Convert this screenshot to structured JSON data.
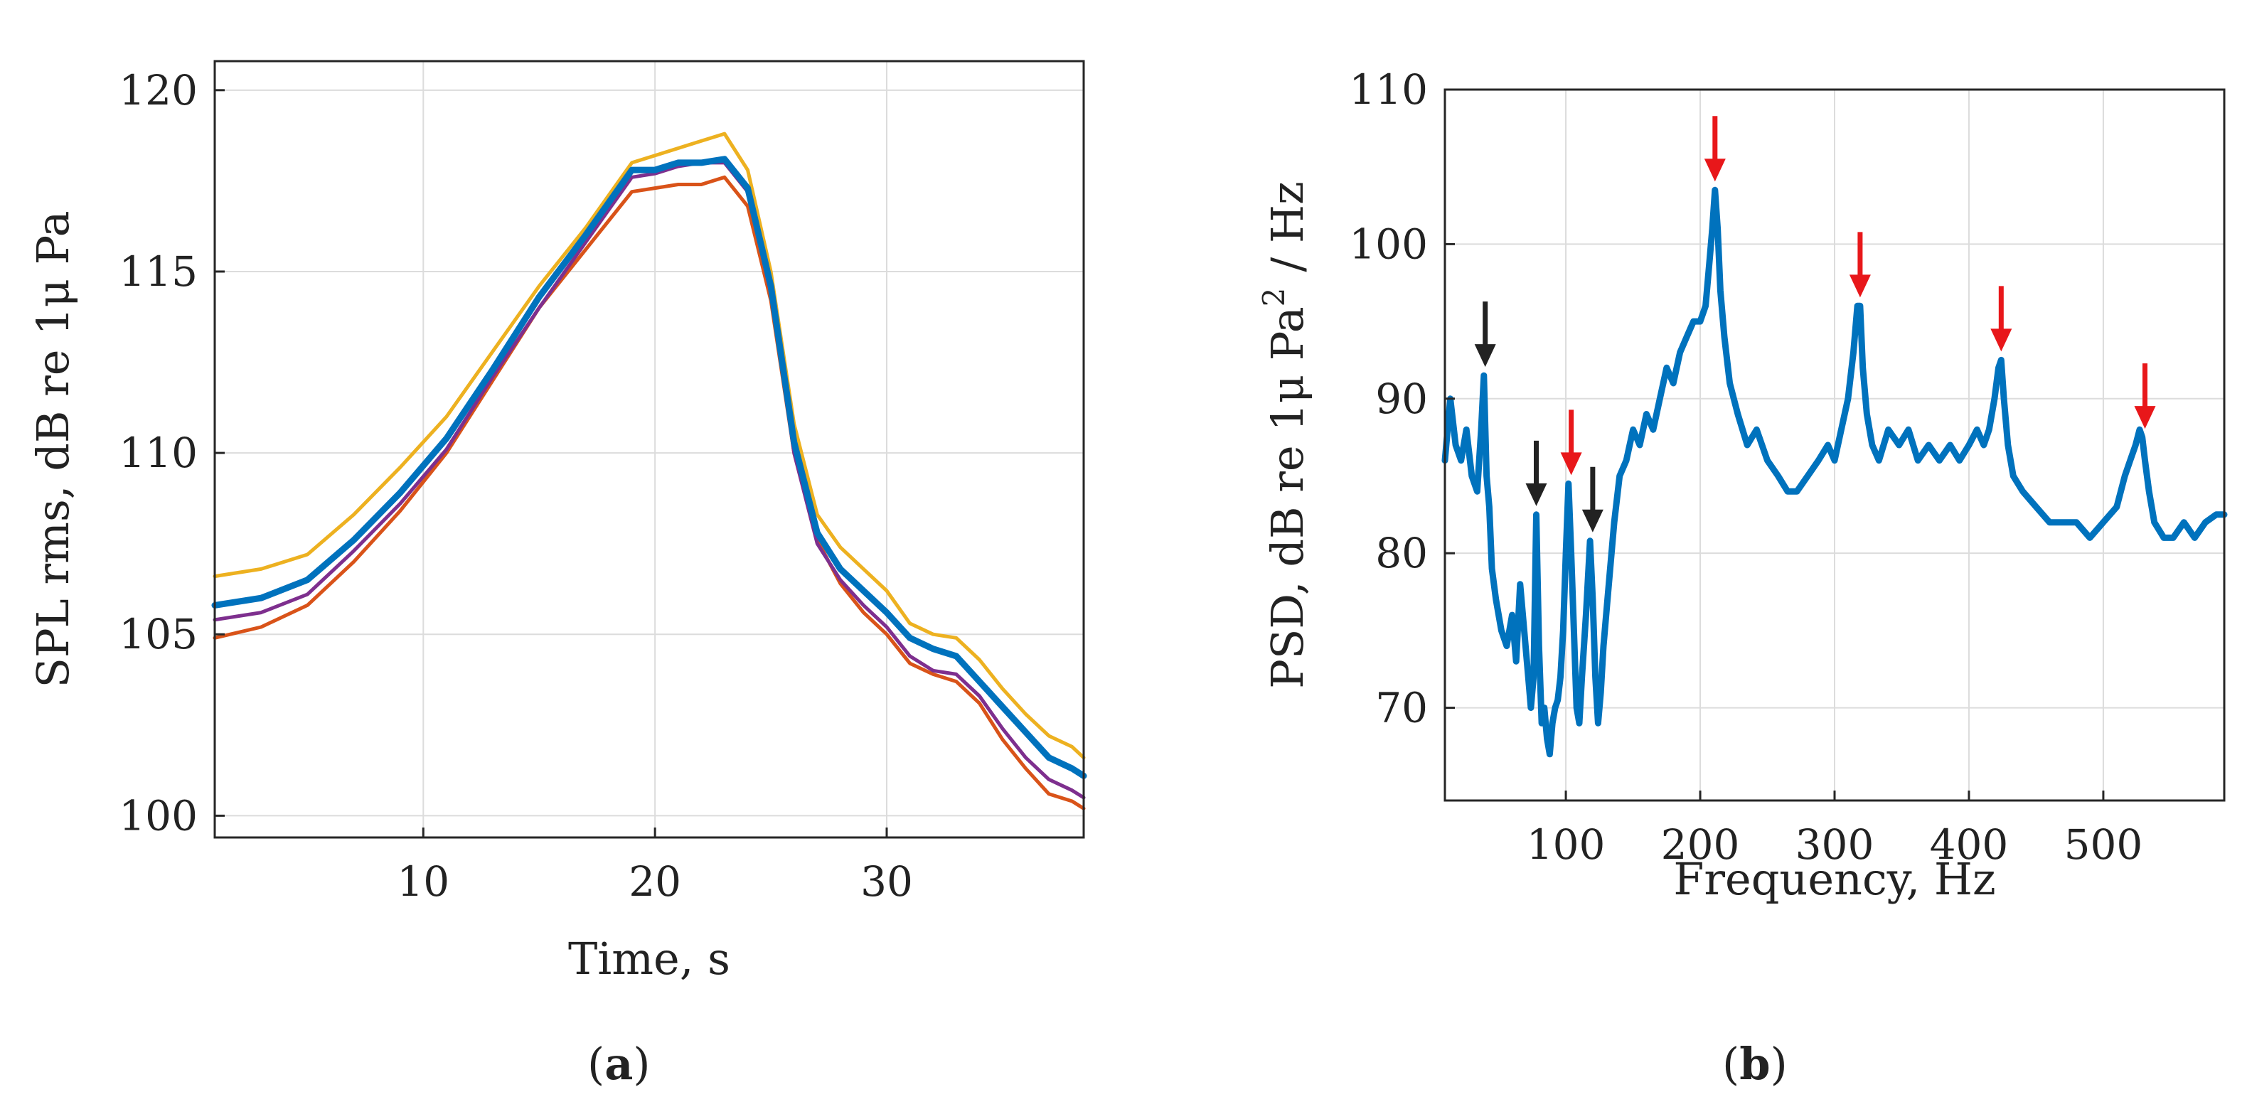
{
  "chart_data": [
    {
      "id": "a",
      "type": "line",
      "caption_letter": "a",
      "xlabel": "Time, s",
      "ylabel": "SPL rms, dB re 1μ Pa",
      "xlim": [
        1,
        38.5
      ],
      "ylim": [
        99.4,
        120.8
      ],
      "xticks": [
        10,
        20,
        30
      ],
      "yticks": [
        100,
        105,
        110,
        115,
        120
      ],
      "grid": true,
      "series": [
        {
          "name": "yellow",
          "color": "#EDB120",
          "x": [
            1,
            3,
            5,
            7,
            9,
            11,
            13,
            15,
            17,
            19,
            20,
            21,
            22,
            23,
            24,
            25,
            26,
            27,
            28,
            29,
            30,
            31,
            32,
            33,
            34,
            35,
            36,
            37,
            38,
            38.5
          ],
          "y": [
            106.6,
            106.8,
            107.2,
            108.3,
            109.6,
            111.0,
            112.8,
            114.6,
            116.2,
            118.0,
            118.2,
            118.4,
            118.6,
            118.8,
            117.8,
            115.0,
            110.8,
            108.3,
            107.4,
            106.8,
            106.2,
            105.3,
            105.0,
            104.9,
            104.3,
            103.5,
            102.8,
            102.2,
            101.9,
            101.6
          ]
        },
        {
          "name": "orange",
          "color": "#D95319",
          "x": [
            1,
            3,
            5,
            7,
            9,
            11,
            13,
            15,
            17,
            19,
            20,
            21,
            22,
            23,
            24,
            25,
            26,
            27,
            28,
            29,
            30,
            31,
            32,
            33,
            34,
            35,
            36,
            37,
            38,
            38.5
          ],
          "y": [
            104.9,
            105.2,
            105.8,
            107.0,
            108.4,
            110.0,
            112.0,
            114.0,
            115.6,
            117.2,
            117.3,
            117.4,
            117.4,
            117.6,
            116.8,
            114.2,
            110.0,
            107.6,
            106.4,
            105.6,
            105.0,
            104.2,
            103.9,
            103.7,
            103.1,
            102.1,
            101.3,
            100.6,
            100.4,
            100.2
          ]
        },
        {
          "name": "purple",
          "color": "#7E2F8E",
          "x": [
            1,
            3,
            5,
            7,
            9,
            11,
            13,
            15,
            17,
            19,
            20,
            21,
            22,
            23,
            24,
            25,
            26,
            27,
            28,
            29,
            30,
            31,
            32,
            33,
            34,
            35,
            36,
            37,
            38,
            38.5
          ],
          "y": [
            105.4,
            105.6,
            106.1,
            107.3,
            108.6,
            110.1,
            112.1,
            114.0,
            115.8,
            117.6,
            117.7,
            117.9,
            118.0,
            118.0,
            117.2,
            114.4,
            110.0,
            107.5,
            106.5,
            105.8,
            105.2,
            104.4,
            104.0,
            103.9,
            103.3,
            102.4,
            101.6,
            101.0,
            100.7,
            100.5
          ]
        },
        {
          "name": "blue",
          "color": "#0072BD",
          "x": [
            1,
            3,
            5,
            7,
            9,
            11,
            13,
            15,
            17,
            19,
            20,
            21,
            22,
            23,
            24,
            25,
            26,
            27,
            28,
            29,
            30,
            31,
            32,
            33,
            34,
            35,
            36,
            37,
            38,
            38.5
          ],
          "y": [
            105.8,
            106.0,
            106.5,
            107.6,
            108.9,
            110.4,
            112.3,
            114.3,
            116.0,
            117.8,
            117.8,
            118.0,
            118.0,
            118.1,
            117.3,
            114.6,
            110.3,
            107.8,
            106.8,
            106.2,
            105.6,
            104.9,
            104.6,
            104.4,
            103.7,
            103.0,
            102.3,
            101.6,
            101.3,
            101.1
          ]
        }
      ]
    },
    {
      "id": "b",
      "type": "line",
      "caption_letter": "b",
      "xlabel": "Frequency, Hz",
      "ylabel_main": "PSD, dB re 1μ Pa",
      "ylabel_sup": "2",
      "ylabel_tail": "/ Hz",
      "xlim": [
        10,
        590
      ],
      "ylim": [
        64,
        110
      ],
      "xticks": [
        100,
        200,
        300,
        400,
        500
      ],
      "yticks": [
        70,
        80,
        90,
        100,
        110
      ],
      "grid": true,
      "series": [
        {
          "name": "PSD",
          "color": "#0072BD",
          "x": [
            10,
            14,
            18,
            22,
            26,
            30,
            34,
            37,
            39,
            41,
            43,
            45,
            48,
            52,
            56,
            60,
            63,
            66,
            69,
            72,
            74,
            76,
            78,
            80,
            82,
            84,
            86,
            88,
            90,
            92,
            94,
            96,
            98,
            100,
            102,
            104,
            106,
            108,
            110,
            112,
            115,
            118,
            120,
            122,
            124,
            126,
            128,
            132,
            136,
            140,
            145,
            150,
            155,
            160,
            165,
            170,
            175,
            180,
            185,
            190,
            195,
            200,
            204,
            207,
            209,
            211,
            213,
            215,
            218,
            222,
            228,
            235,
            242,
            250,
            258,
            265,
            272,
            280,
            288,
            295,
            300,
            305,
            310,
            314,
            317,
            319,
            321,
            324,
            328,
            333,
            340,
            348,
            355,
            362,
            370,
            378,
            386,
            393,
            400,
            406,
            411,
            415,
            419,
            422,
            424,
            426,
            429,
            433,
            440,
            450,
            460,
            470,
            480,
            490,
            500,
            510,
            516,
            520,
            524,
            527,
            529,
            531,
            534,
            538,
            545,
            552,
            560,
            568,
            576,
            584,
            590
          ],
          "y": [
            86,
            90,
            87,
            86,
            88,
            85,
            84,
            88,
            91.5,
            85,
            83,
            79,
            77,
            75,
            74,
            76,
            73,
            78,
            75,
            72,
            70,
            72,
            82.5,
            74,
            69,
            70,
            68,
            67,
            69,
            70,
            70.5,
            72,
            75,
            80,
            84.5,
            80,
            75,
            70,
            69,
            72,
            76,
            80.8,
            77,
            72,
            69,
            71,
            74,
            78,
            82,
            85,
            86,
            88,
            87,
            89,
            88,
            90,
            92,
            91,
            93,
            94,
            95,
            95,
            96,
            99,
            101,
            103.5,
            101,
            97,
            94,
            91,
            89,
            87,
            88,
            86,
            85,
            84,
            84,
            85,
            86,
            87,
            86,
            88,
            90,
            93,
            96,
            96,
            92,
            89,
            87,
            86,
            88,
            87,
            88,
            86,
            87,
            86,
            87,
            86,
            87,
            88,
            87,
            88,
            90,
            92,
            92.5,
            90,
            87,
            85,
            84,
            83,
            82,
            82,
            82,
            81,
            82,
            83,
            85,
            86,
            87,
            88,
            87.5,
            86,
            84,
            82,
            81,
            81,
            82,
            81,
            82,
            82.5,
            82.5
          ]
        }
      ],
      "annotations": [
        {
          "type": "arrow",
          "color": "#222222",
          "x": 40,
          "y": 91.5
        },
        {
          "type": "arrow",
          "color": "#222222",
          "x": 78,
          "y": 82.5
        },
        {
          "type": "arrow",
          "color": "#222222",
          "x": 120,
          "y": 80.8
        },
        {
          "type": "arrow",
          "color": "#E8171A",
          "x": 104,
          "y": 84.5
        },
        {
          "type": "arrow",
          "color": "#E8171A",
          "x": 211,
          "y": 103.5
        },
        {
          "type": "arrow",
          "color": "#E8171A",
          "x": 319,
          "y": 96
        },
        {
          "type": "arrow",
          "color": "#E8171A",
          "x": 424,
          "y": 92.5
        },
        {
          "type": "arrow",
          "color": "#E8171A",
          "x": 531,
          "y": 87.5
        }
      ]
    }
  ]
}
